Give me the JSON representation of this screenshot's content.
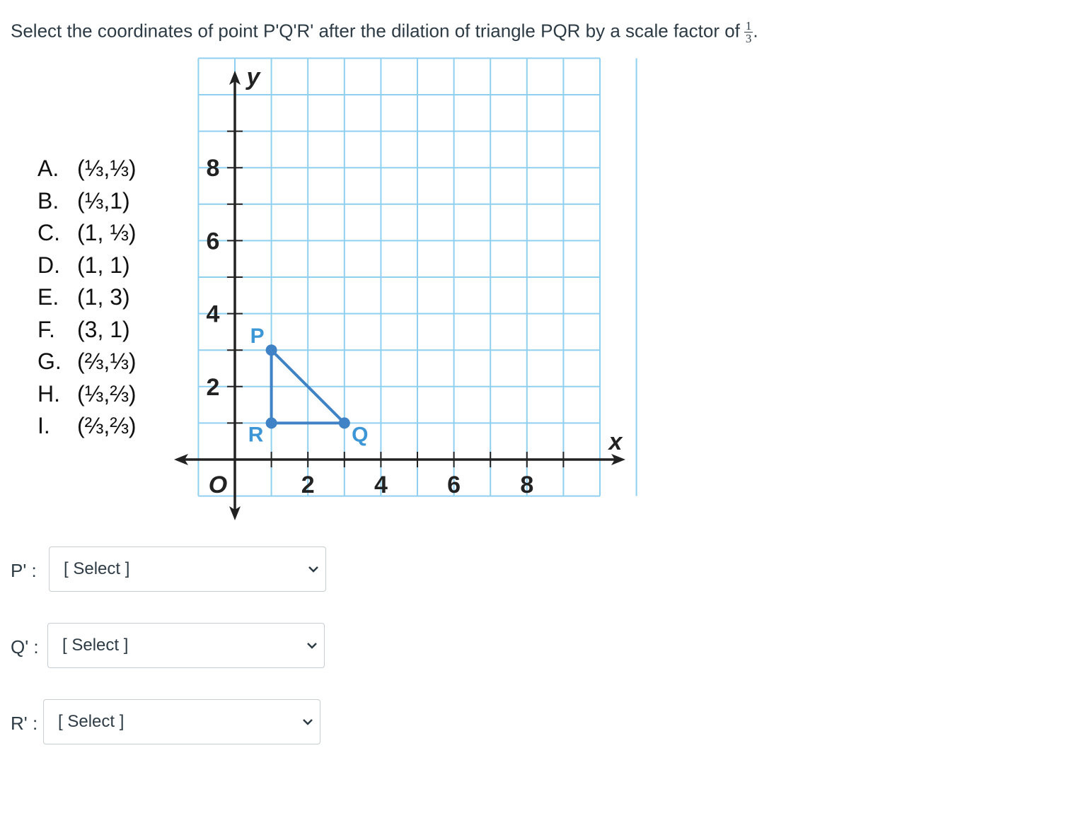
{
  "question": {
    "text": "Select the coordinates of point P'Q'R' after the dilation of triangle PQR by a scale factor of",
    "fraction_num": "1",
    "fraction_den": "3",
    "end": "."
  },
  "options": [
    {
      "letter": "A.",
      "value": "(⅓,⅓)"
    },
    {
      "letter": "B.",
      "value": "(⅓,1)"
    },
    {
      "letter": "C.",
      "value": "(1, ⅓)"
    },
    {
      "letter": "D.",
      "value": "(1, 1)"
    },
    {
      "letter": "E.",
      "value": "(1, 3)"
    },
    {
      "letter": "F.",
      "value": "(3, 1)"
    },
    {
      "letter": "G.",
      "value": "(⅔,⅓)"
    },
    {
      "letter": "H.",
      "value": "(⅓,⅔)"
    },
    {
      "letter": "I.",
      "value": "(⅔,⅔)"
    }
  ],
  "graph": {
    "xlabel": "x",
    "ylabel": "y",
    "origin_label": "O",
    "xlim": [
      -1,
      10
    ],
    "ylim": [
      -1,
      10
    ],
    "x_ticks": [
      "2",
      "4",
      "6",
      "8"
    ],
    "y_ticks": [
      "2",
      "4",
      "6",
      "8"
    ],
    "points": [
      {
        "name": "P",
        "x": 1,
        "y": 3
      },
      {
        "name": "Q",
        "x": 3,
        "y": 1
      },
      {
        "name": "R",
        "x": 1,
        "y": 1
      }
    ],
    "grid_color": "#8fd0f0",
    "shape_color": "#3f83c6",
    "label_color": "#3d97d6"
  },
  "answers": [
    {
      "label": "P' :",
      "value": "[ Select ]"
    },
    {
      "label": "Q' :",
      "value": "[ Select ]"
    },
    {
      "label": "R' :",
      "value": "[ Select ]"
    }
  ]
}
